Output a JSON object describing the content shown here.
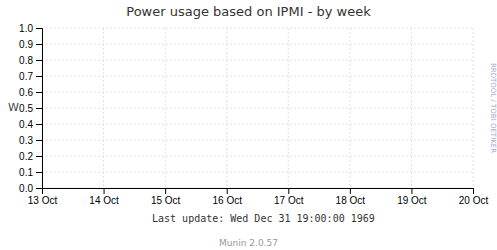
{
  "chart_data": {
    "type": "line",
    "title": "Power usage based on IPMI - by week",
    "y_label": "W",
    "categories": [
      "13 Oct",
      "14 Oct",
      "15 Oct",
      "16 Oct",
      "17 Oct",
      "18 Oct",
      "19 Oct",
      "20 Oct"
    ],
    "ylim": [
      0.0,
      1.0
    ],
    "yticks": [
      {
        "value": 0.0,
        "label": "0.0"
      },
      {
        "value": 0.1,
        "label": "0.1"
      },
      {
        "value": 0.2,
        "label": "0.2"
      },
      {
        "value": 0.3,
        "label": "0.3"
      },
      {
        "value": 0.4,
        "label": "0.4"
      },
      {
        "value": 0.5,
        "label": "0.5"
      },
      {
        "value": 0.6,
        "label": "0.6"
      },
      {
        "value": 0.7,
        "label": "0.7"
      },
      {
        "value": 0.8,
        "label": "0.8"
      },
      {
        "value": 0.9,
        "label": "0.9"
      },
      {
        "value": 1.0,
        "label": "1.0"
      }
    ],
    "grid": true,
    "annotations": [
      "Last update: Wed Dec 31 19:00:00 1969",
      "Munin 2.0.57",
      "RRDTOOL / TOBI OETIKER"
    ]
  }
}
